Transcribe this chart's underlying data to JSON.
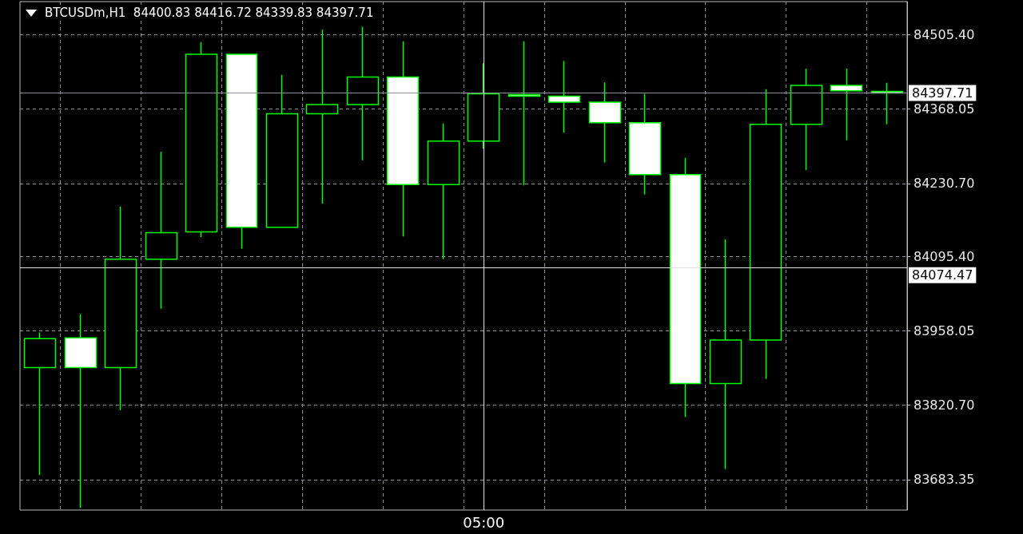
{
  "chart_data": {
    "type": "candlestick",
    "title": "BTCUSDm,H1  84400.83 84416.72 84339.83 84397.71",
    "categories": [
      null,
      null,
      null,
      null,
      null,
      null,
      null,
      null,
      null,
      null,
      null,
      "05:00",
      null,
      null,
      null,
      null,
      null,
      null,
      null,
      null,
      null,
      null
    ],
    "ohlc": [
      [
        83890.5,
        83955.3,
        83691.9,
        83944.0
      ],
      [
        83945.4,
        83989.1,
        83631.3,
        83890.5
      ],
      [
        83890.5,
        84187.7,
        83811.7,
        84090.5
      ],
      [
        84090.5,
        84289.2,
        83999.0,
        84139.8
      ],
      [
        84141.3,
        84492.0,
        84131.4,
        84469.5
      ],
      [
        84469.5,
        84469.5,
        84110.3,
        84149.7
      ],
      [
        84149.7,
        84431.4,
        84149.7,
        84359.6
      ],
      [
        84359.6,
        84514.6,
        84193.4,
        84376.5
      ],
      [
        84376.5,
        84520.2,
        84273.7,
        84427.2
      ],
      [
        84427.2,
        84493.4,
        84132.8,
        84228.6
      ],
      [
        84228.6,
        84341.3,
        84090.5,
        84308.9
      ],
      [
        84308.9,
        84452.6,
        84294.8,
        84396.2
      ],
      [
        84394.8,
        84493.4,
        84227.2,
        84392.0
      ],
      [
        84392.0,
        84456.8,
        84324.4,
        84380.7
      ],
      [
        84380.7,
        84417.4,
        84269.4,
        84342.7
      ],
      [
        84342.7,
        84396.2,
        84210.3,
        84246.9
      ],
      [
        84246.9,
        84277.9,
        83799.0,
        83861.0
      ],
      [
        83861.0,
        84127.2,
        83703.2,
        83941.2
      ],
      [
        83941.2,
        84404.7,
        83869.4,
        84339.9
      ],
      [
        84339.9,
        84442.7,
        84255.4,
        84411.7
      ],
      [
        84411.7,
        84442.7,
        84310.3,
        84401.9
      ],
      [
        84400.83,
        84416.72,
        84339.83,
        84397.71
      ]
    ],
    "color": "#00ff00",
    "colors": [
      "#000000",
      "#ffffff",
      "#000000",
      "#000000",
      "#000000",
      "#ffffff",
      "#000000",
      "#000000",
      "#000000",
      "#ffffff",
      "#000000",
      "#000000",
      "#ffffff",
      "#ffffff",
      "#ffffff",
      "#ffffff",
      "#ffffff",
      "#000000",
      "#000000",
      "#000000",
      "#ffffff",
      "#ffffff"
    ],
    "ylim": [
      83627.1,
      84566.7
    ],
    "yticks": [
      {
        "value": 83683.35,
        "label": "83683.35"
      },
      {
        "value": 83820.7,
        "label": "83820.70"
      },
      {
        "value": 83958.05,
        "label": "83958.05"
      },
      {
        "value": 84095.4,
        "label": "84095.40"
      },
      {
        "value": 84230.7,
        "label": "84230.70"
      },
      {
        "value": 84368.05,
        "label": "84368.05"
      },
      {
        "value": 84505.4,
        "label": "84505.40"
      }
    ],
    "grid": true,
    "ref_lines": [
      {
        "axis": "y",
        "value": 84397.71,
        "label": "84397.71",
        "color": "#8a8f99"
      },
      {
        "axis": "y",
        "value": 84074.47,
        "label": "84074.47",
        "color": "#e0e0e0"
      },
      {
        "axis": "x",
        "value": "05:00",
        "label": null,
        "color": "#e0e0e0"
      }
    ]
  }
}
